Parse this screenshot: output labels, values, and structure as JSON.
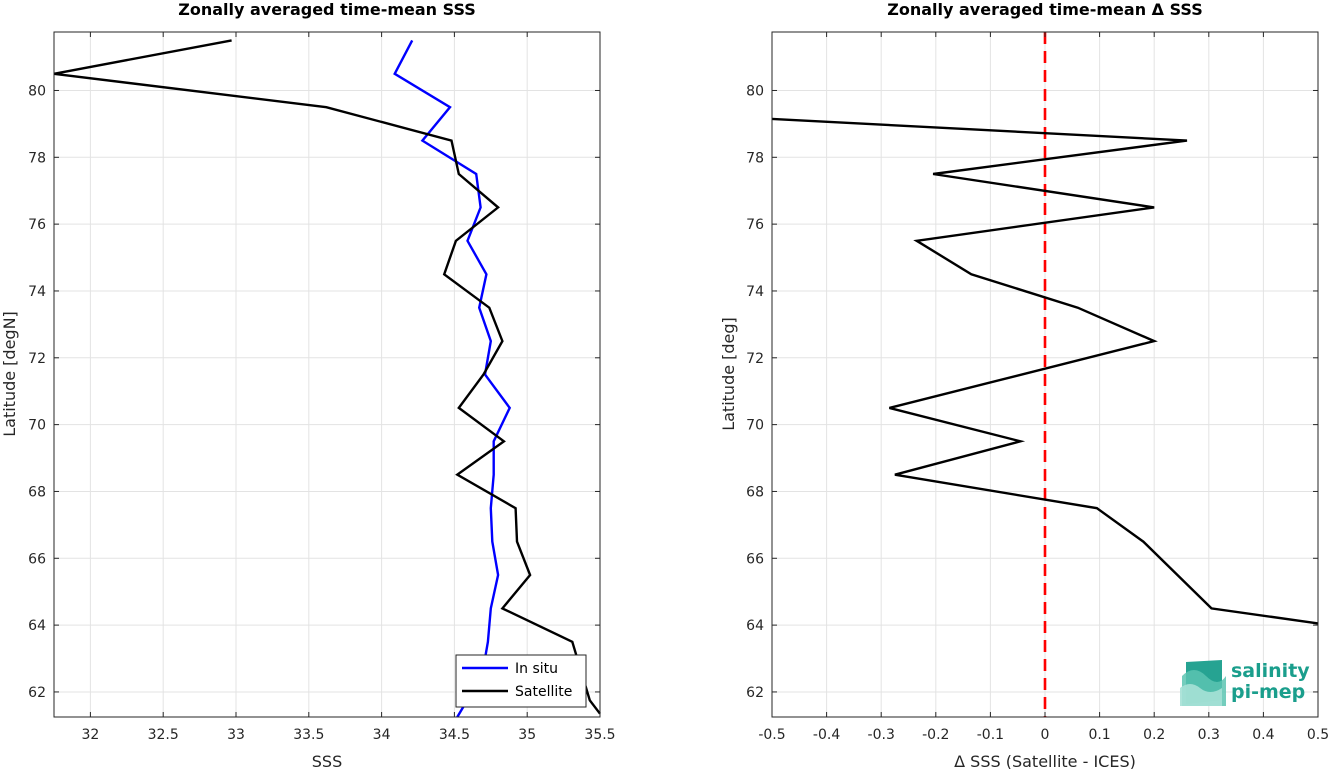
{
  "chart_data": [
    {
      "type": "line",
      "title": "Zonally averaged time-mean SSS",
      "xlabel": "SSS",
      "ylabel": "Latitude [degN]",
      "xlim": [
        31.75,
        35.5
      ],
      "ylim": [
        61.25,
        81.75
      ],
      "xticks": [
        "32",
        "32.5",
        "33",
        "33.5",
        "34",
        "34.5",
        "35",
        "35.5"
      ],
      "yticks": [
        "62",
        "64",
        "66",
        "68",
        "70",
        "72",
        "74",
        "76",
        "78",
        "80"
      ],
      "grid": true,
      "legend_position": "bottom-right",
      "series": [
        {
          "name": "In situ",
          "color": "#0000ff",
          "x": [
            34.21,
            34.09,
            34.47,
            34.28,
            34.65,
            34.68,
            34.59,
            34.72,
            34.67,
            34.75,
            34.71,
            34.88,
            34.77,
            34.77,
            34.75,
            34.76,
            34.8,
            34.75,
            34.73,
            34.69,
            34.52
          ],
          "y": [
            81.5,
            80.5,
            79.5,
            78.5,
            77.5,
            76.5,
            75.5,
            74.5,
            73.5,
            72.5,
            71.5,
            70.5,
            69.5,
            68.5,
            67.5,
            66.5,
            65.5,
            64.5,
            63.5,
            62.5,
            61.25
          ]
        },
        {
          "name": "Satellite",
          "color": "#000000",
          "x": [
            32.97,
            31.75,
            33.62,
            34.48,
            34.53,
            34.8,
            34.51,
            34.43,
            34.74,
            34.83,
            34.7,
            34.53,
            34.84,
            34.52,
            34.92,
            34.93,
            35.02,
            34.83,
            35.31,
            35.43,
            35.5
          ],
          "y": [
            81.5,
            80.5,
            79.5,
            78.5,
            77.5,
            76.5,
            75.5,
            74.5,
            73.5,
            72.5,
            71.5,
            70.5,
            69.5,
            68.5,
            67.5,
            66.5,
            65.5,
            64.5,
            63.5,
            61.75,
            61.35
          ]
        }
      ]
    },
    {
      "type": "line",
      "title": "Zonally averaged time-mean Δ SSS",
      "xlabel": "Δ SSS (Satellite - ICES)",
      "ylabel": "Latitude [deg]",
      "xlim": [
        -0.5,
        0.5
      ],
      "ylim": [
        61.25,
        81.75
      ],
      "xticks": [
        "-0.5",
        "-0.4",
        "-0.3",
        "-0.2",
        "-0.1",
        "0",
        "0.1",
        "0.2",
        "0.3",
        "0.4",
        "0.5"
      ],
      "yticks": [
        "62",
        "64",
        "66",
        "68",
        "70",
        "72",
        "74",
        "76",
        "78",
        "80"
      ],
      "grid": true,
      "reference_line": {
        "x": 0,
        "color": "#ff0000",
        "style": "dashed"
      },
      "series": [
        {
          "color": "#000000",
          "x": [
            -0.5,
            0.26,
            -0.205,
            0.2,
            -0.235,
            -0.135,
            0.06,
            0.2,
            -0.285,
            -0.045,
            -0.275,
            0.095,
            0.18,
            0.305,
            0.5
          ],
          "y": [
            79.15,
            78.5,
            77.5,
            76.5,
            75.5,
            74.5,
            73.5,
            72.5,
            70.5,
            69.5,
            68.5,
            67.5,
            66.5,
            64.5,
            64.05
          ]
        }
      ]
    }
  ],
  "logo": {
    "line1": "salinity",
    "line2": "pi-mep",
    "color": "#1a9e8c"
  }
}
